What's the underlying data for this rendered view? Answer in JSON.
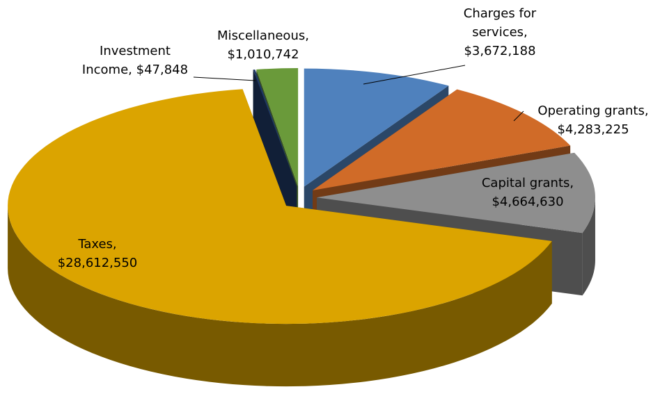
{
  "chart_data": {
    "type": "pie",
    "categories": [
      "Charges for services,",
      "Operating grants,",
      "Capital grants,",
      "Taxes,",
      "Investment Income,",
      "Miscellaneous,"
    ],
    "values": [
      3672188,
      4283225,
      4664630,
      28612550,
      47848,
      1010742
    ],
    "value_labels": [
      "$3,672,188",
      "$4,283,225",
      "$4,664,630",
      "$28,612,550",
      "$47,848",
      "$1,010,742"
    ],
    "colors": [
      "#4f81bd",
      "#d06b28",
      "#8e8e8e",
      "#dba400",
      "#1f3864",
      "#6a9a3a"
    ]
  }
}
